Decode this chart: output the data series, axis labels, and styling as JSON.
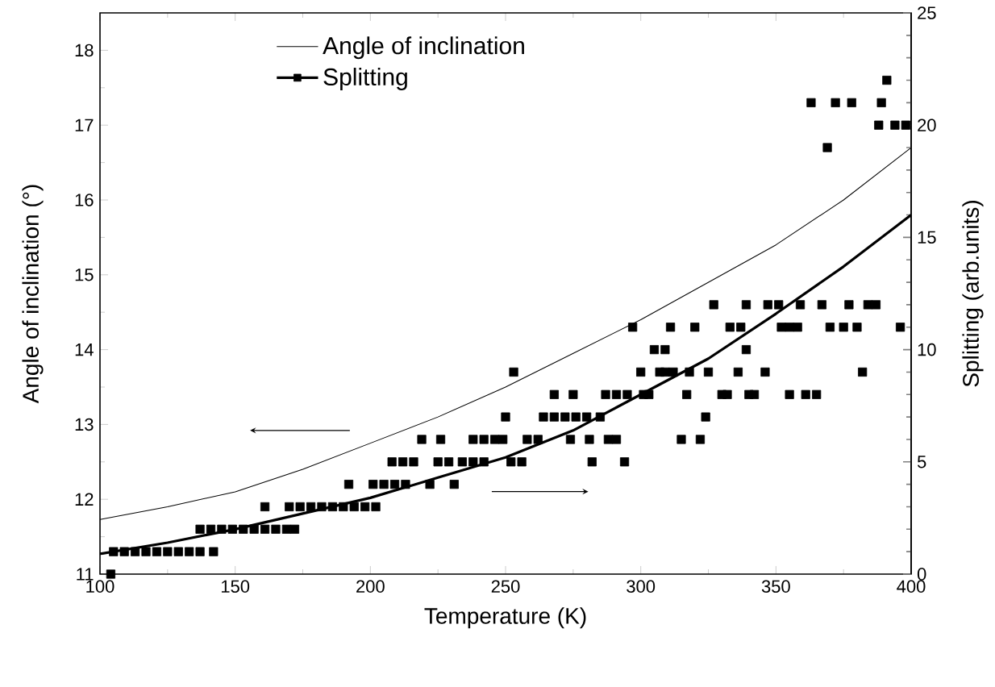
{
  "chart_data": {
    "type": "line",
    "xlabel": "Temperature (K)",
    "ylabel": "Angle of inclination (°)",
    "y2label": "Splitting (arb.units)",
    "xlim": [
      100,
      400
    ],
    "xticks": [
      100,
      150,
      200,
      250,
      300,
      350,
      400
    ],
    "ylim": [
      11,
      18.5
    ],
    "yticks": [
      11,
      12,
      13,
      14,
      15,
      16,
      17,
      18
    ],
    "y2lim": [
      0,
      25
    ],
    "y2ticks": [
      0,
      5,
      10,
      15,
      20,
      25
    ],
    "legend": "top left",
    "series": [
      {
        "name": "Angle of inclination",
        "color": "#000000",
        "x": [
          100,
          125,
          150,
          175,
          200,
          225,
          250,
          275,
          300,
          325,
          350,
          375,
          400
        ],
        "values": [
          11.73,
          11.9,
          12.1,
          12.4,
          12.75,
          13.1,
          13.5,
          13.95,
          14.4,
          14.9,
          15.4,
          16.0,
          16.7
        ]
      },
      {
        "name": "Splitting",
        "type": "scatter",
        "axis": "y2",
        "marker": "square",
        "color": "#000000",
        "x": [
          104,
          105,
          109,
          113,
          117,
          121,
          125,
          129,
          133,
          137,
          137,
          141,
          142,
          145,
          149,
          153,
          157,
          161,
          161,
          165,
          169,
          170,
          172,
          174,
          178,
          182,
          186,
          190,
          192,
          194,
          198,
          201,
          202,
          205,
          208,
          209,
          212,
          213,
          216,
          219,
          222,
          225,
          226,
          229,
          231,
          234,
          238,
          238,
          242,
          242,
          246,
          249,
          250,
          252,
          253,
          256,
          258,
          262,
          264,
          268,
          268,
          272,
          274,
          275,
          276,
          280,
          281,
          282,
          285,
          287,
          288,
          291,
          291,
          294,
          295,
          297,
          300,
          301,
          303,
          305,
          307,
          309,
          309,
          311,
          312,
          315,
          317,
          318,
          320,
          322,
          324,
          325,
          327,
          330,
          332,
          333,
          336,
          337,
          339,
          339,
          340,
          342,
          346,
          347,
          351,
          352,
          355,
          355,
          358,
          359,
          361,
          363,
          365,
          367,
          369,
          370,
          372,
          375,
          377,
          378,
          380,
          382,
          384,
          387,
          388,
          389,
          391,
          394,
          396,
          398
        ],
        "values": [
          0,
          1,
          1,
          1,
          1,
          1,
          1,
          1,
          1,
          1,
          2,
          2,
          1,
          2,
          2,
          2,
          2,
          2,
          3,
          2,
          2,
          3,
          2,
          3,
          3,
          3,
          3,
          3,
          4,
          3,
          3,
          4,
          3,
          4,
          5,
          4,
          5,
          4,
          5,
          6,
          4,
          5,
          6,
          5,
          4,
          5,
          5,
          6,
          5,
          6,
          6,
          6,
          7,
          5,
          9,
          5,
          6,
          6,
          7,
          7,
          8,
          7,
          6,
          8,
          7,
          7,
          6,
          5,
          7,
          8,
          6,
          6,
          8,
          5,
          8,
          11,
          9,
          8,
          8,
          10,
          9,
          9,
          10,
          11,
          9,
          6,
          8,
          9,
          11,
          6,
          7,
          9,
          12,
          8,
          8,
          11,
          9,
          11,
          10,
          12,
          8,
          8,
          9,
          12,
          12,
          11,
          8,
          11,
          11,
          12,
          8,
          21,
          8,
          12,
          19,
          11,
          21,
          11,
          12,
          21,
          11,
          9,
          12,
          12,
          20,
          21,
          22,
          20,
          11,
          20
        ]
      },
      {
        "axis": "y2",
        "color": "#000000",
        "x": [
          100,
          125,
          150,
          175,
          200,
          225,
          250,
          275,
          300,
          325,
          350,
          375,
          400
        ],
        "values": [
          0.9,
          1.4,
          2.0,
          2.7,
          3.4,
          4.3,
          5.2,
          6.4,
          8.0,
          9.6,
          11.6,
          13.7,
          16.0
        ]
      }
    ]
  }
}
